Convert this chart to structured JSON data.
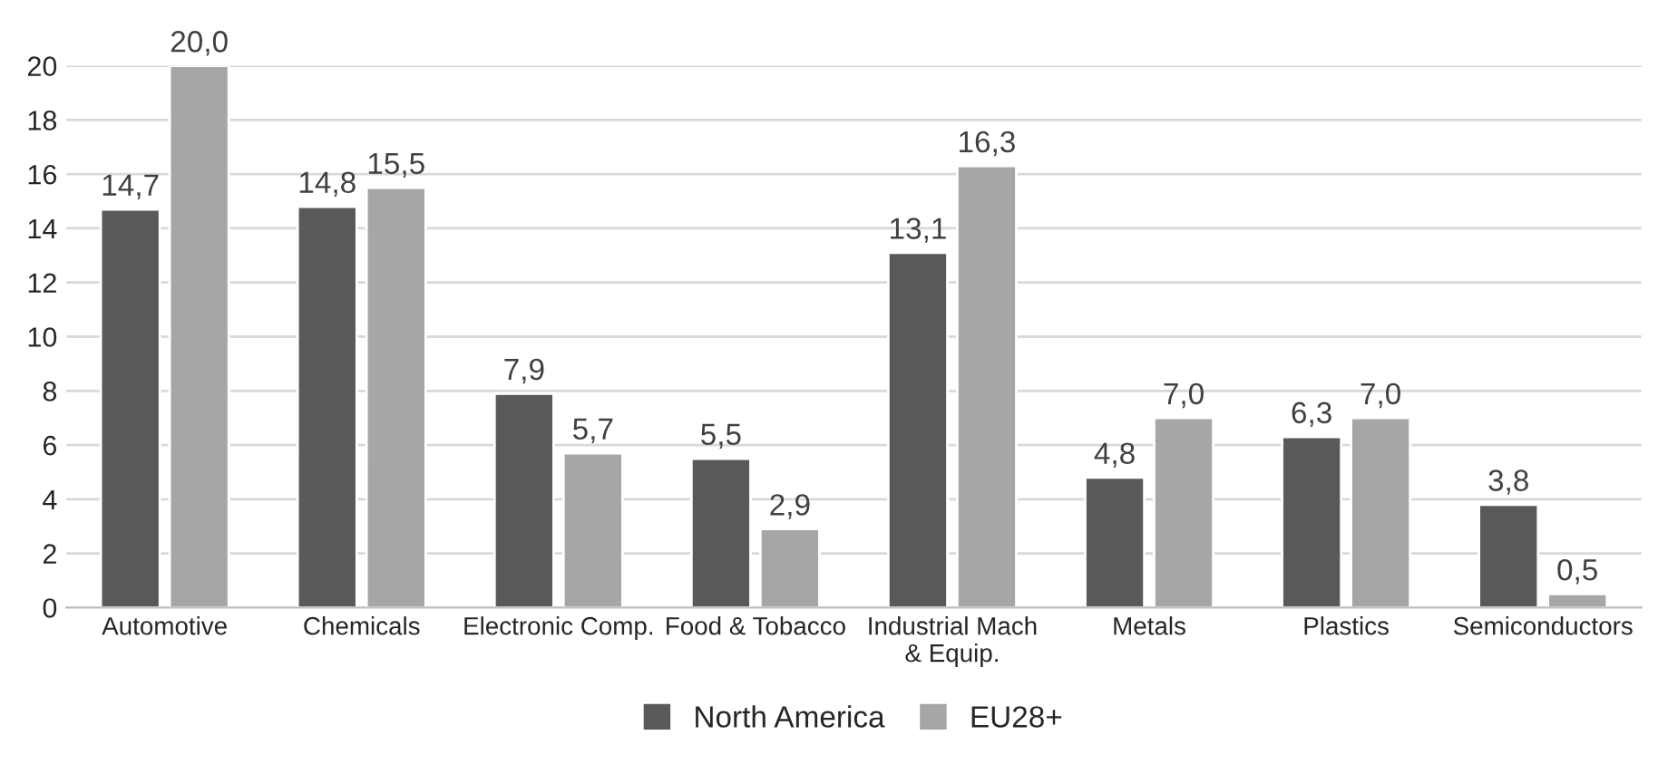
{
  "chart_data": {
    "type": "bar",
    "categories": [
      "Automotive",
      "Chemicals",
      "Electronic Comp.",
      "Food & Tobacco",
      "Industrial Mach\n& Equip.",
      "Metals",
      "Plastics",
      "Semiconductors"
    ],
    "series": [
      {
        "name": "North America",
        "color": "#595959",
        "values": [
          14.7,
          14.8,
          7.9,
          5.5,
          13.1,
          4.8,
          6.3,
          3.8
        ],
        "value_labels": [
          "14,7",
          "14,8",
          "7,9",
          "5,5",
          "13,1",
          "4,8",
          "6,3",
          "3,8"
        ]
      },
      {
        "name": "EU28+",
        "color": "#a6a6a6",
        "values": [
          20.0,
          15.5,
          5.7,
          2.9,
          16.3,
          7.0,
          7.0,
          0.5
        ],
        "value_labels": [
          "20,0",
          "15,5",
          "5,7",
          "2,9",
          "16,3",
          "7,0",
          "7,0",
          "0,5"
        ]
      }
    ],
    "ylim": [
      0,
      20
    ],
    "yticks": [
      0,
      2,
      4,
      6,
      8,
      10,
      12,
      14,
      16,
      18,
      20
    ],
    "grid": "y",
    "legend": "bottom"
  }
}
